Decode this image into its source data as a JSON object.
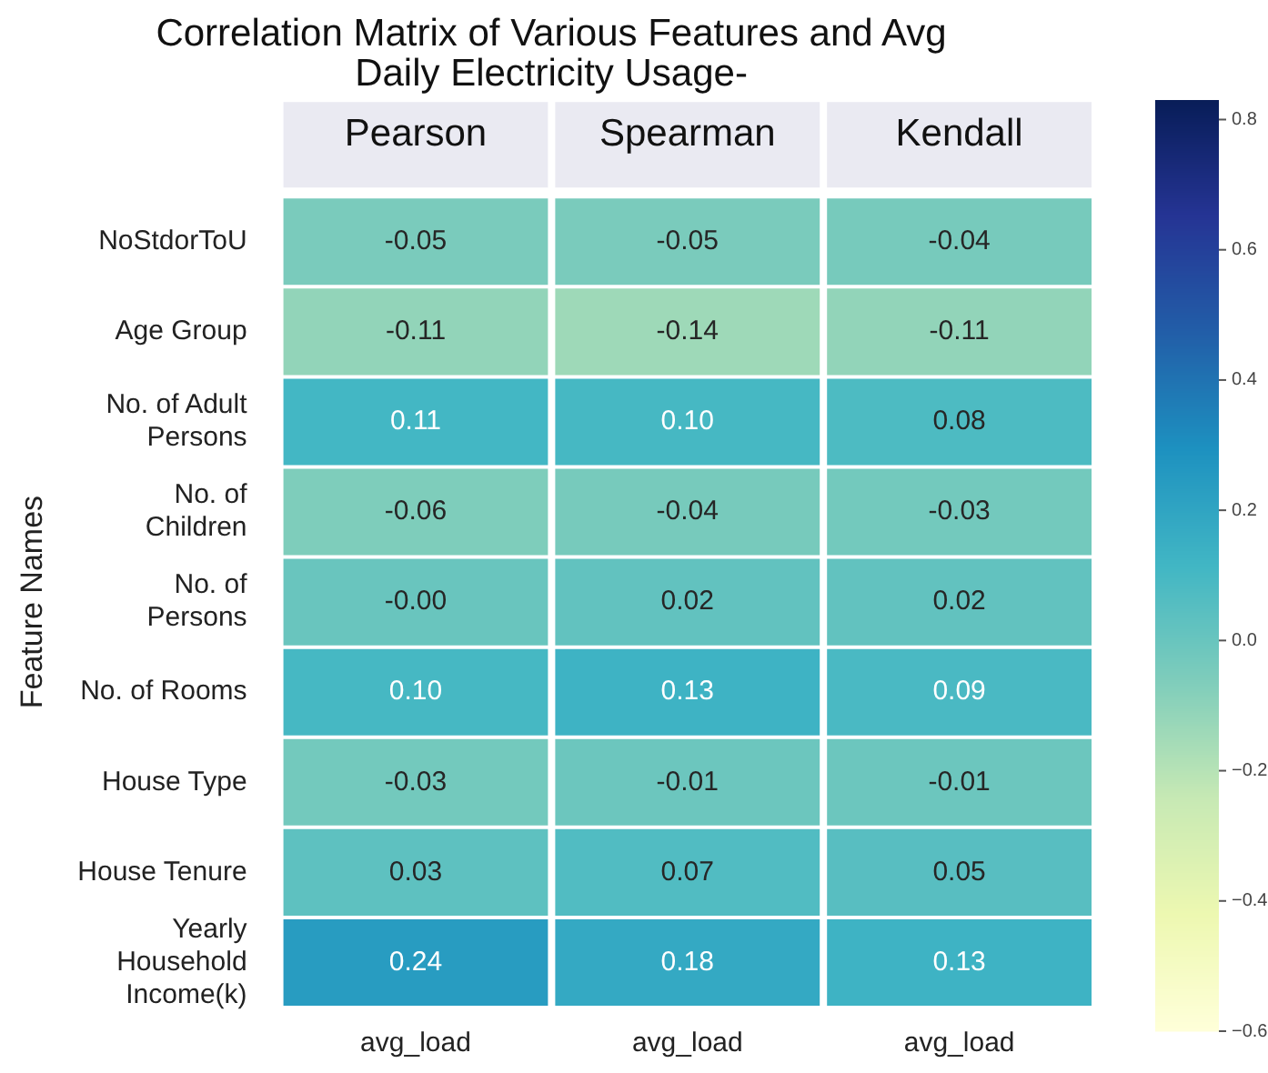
{
  "chart_data": {
    "type": "heatmap",
    "title": "Correlation Matrix of Various Features and Avg Daily Electricity Usage-",
    "ylabel": "Feature Names",
    "categories": [
      "avg_load",
      "avg_load",
      "avg_load"
    ],
    "annotations": [
      "Pearson",
      "Spearman",
      "Kendall"
    ],
    "y_categories": [
      "NoStdorToU",
      "Age Group",
      "No. of Adult Persons",
      "No. of Children",
      "No. of Persons",
      "No. of Rooms",
      "House Type",
      "House Tenure",
      "Yearly Household Income(k)"
    ],
    "cells": [
      [
        -0.05,
        -0.05,
        -0.04
      ],
      [
        -0.11,
        -0.14,
        -0.11
      ],
      [
        0.11,
        0.1,
        0.08
      ],
      [
        -0.06,
        -0.04,
        -0.03
      ],
      [
        -0.0,
        0.02,
        0.02
      ],
      [
        0.1,
        0.13,
        0.09
      ],
      [
        -0.03,
        -0.01,
        -0.01
      ],
      [
        0.03,
        0.07,
        0.05
      ],
      [
        0.24,
        0.18,
        0.13
      ]
    ],
    "cell_labels": [
      [
        "-0.05",
        "-0.05",
        "-0.04"
      ],
      [
        "-0.11",
        "-0.14",
        "-0.11"
      ],
      [
        "0.11",
        "0.10",
        "0.08"
      ],
      [
        "-0.06",
        "-0.04",
        "-0.03"
      ],
      [
        "-0.00",
        "0.02",
        "0.02"
      ],
      [
        "0.10",
        "0.13",
        "0.09"
      ],
      [
        "-0.03",
        "-0.01",
        "-0.01"
      ],
      [
        "0.03",
        "0.07",
        "0.05"
      ],
      [
        "0.24",
        "0.18",
        "0.13"
      ]
    ],
    "clim": [
      -0.6,
      0.83
    ],
    "cticks": [
      {
        "value": 0.8,
        "label": "0.8"
      },
      {
        "value": 0.6,
        "label": "0.6"
      },
      {
        "value": 0.4,
        "label": "0.4"
      },
      {
        "value": 0.2,
        "label": "0.2"
      },
      {
        "value": 0.0,
        "label": "0.0"
      },
      {
        "value": -0.2,
        "label": "−0.2"
      },
      {
        "value": -0.4,
        "label": "−0.4"
      },
      {
        "value": -0.6,
        "label": "−0.6"
      }
    ]
  }
}
